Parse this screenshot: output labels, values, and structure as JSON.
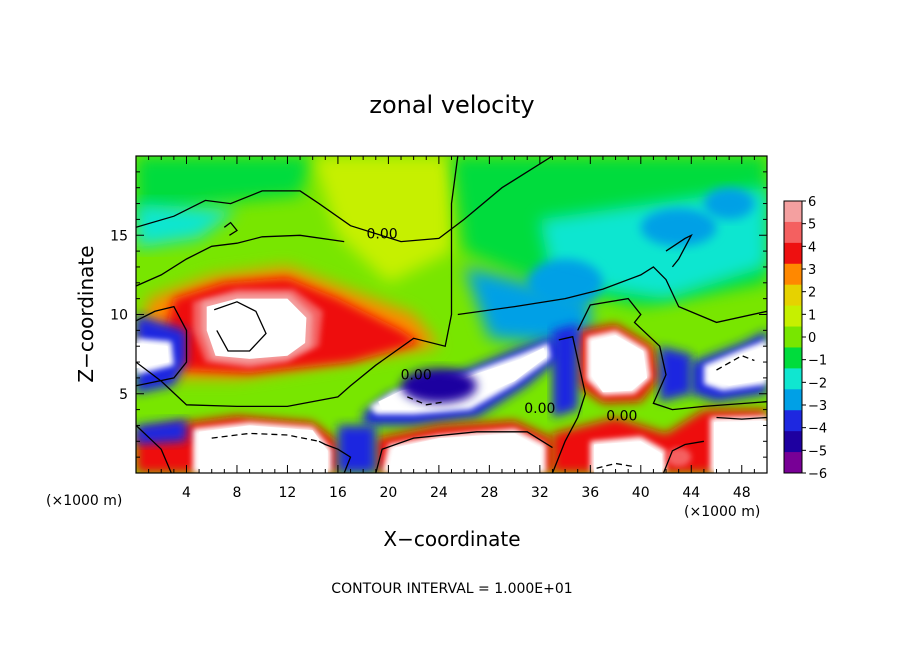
{
  "chart_data": {
    "type": "heatmap",
    "title": "zonal velocity",
    "xlabel": "X−coordinate",
    "ylabel": "Z−coordinate",
    "x_unit_left": "(×1000 m)",
    "x_unit_right": "(×1000 m)",
    "footer": "CONTOUR INTERVAL = 1.000E+01",
    "xlim": [
      0,
      50
    ],
    "ylim": [
      0,
      20
    ],
    "x_ticks": [
      "4",
      "8",
      "12",
      "16",
      "20",
      "24",
      "28",
      "32",
      "36",
      "40",
      "44",
      "48"
    ],
    "x_tick_values": [
      4,
      8,
      12,
      16,
      20,
      24,
      28,
      32,
      36,
      40,
      44,
      48
    ],
    "y_ticks": [
      "5",
      "10",
      "15"
    ],
    "y_tick_values": [
      5,
      10,
      15
    ],
    "colorbar": {
      "labels": [
        "6",
        "5",
        "4",
        "3",
        "2",
        "1",
        "0",
        "−1",
        "−2",
        "−3",
        "−4",
        "−5",
        "−6"
      ],
      "values": [
        6,
        5,
        4,
        3,
        2,
        1,
        0,
        -1,
        -2,
        -3,
        -4,
        -5,
        -6
      ],
      "colors": [
        "#f4a0a0",
        "#f46060",
        "#ee1010",
        "#ff8800",
        "#e6d200",
        "#c6f000",
        "#78e600",
        "#00dc3c",
        "#10e6d0",
        "#00a0e6",
        "#1e28e0",
        "#1e00a0",
        "#780096"
      ],
      "range": [
        -6,
        6
      ]
    },
    "contour_labels": [
      {
        "text": "0.00",
        "x": 19.5,
        "y": 14.8
      },
      {
        "text": "0.00",
        "x": 22.2,
        "y": 5.9
      },
      {
        "text": "0.00",
        "x": 32.0,
        "y": 3.8
      },
      {
        "text": "0.00",
        "x": 38.5,
        "y": 3.3
      }
    ],
    "saturation_color_above": "#ffffff",
    "saturation_color_below": "#ffffff"
  }
}
